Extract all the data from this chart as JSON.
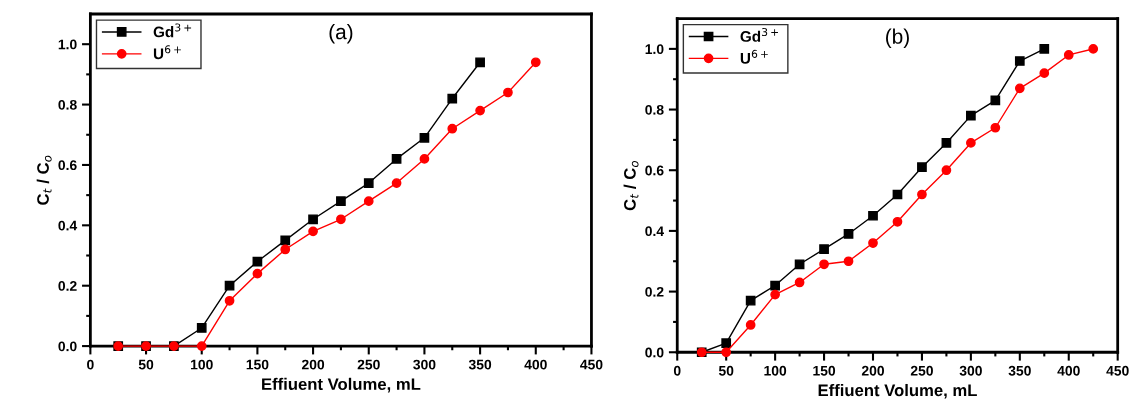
{
  "chart_data": [
    {
      "type": "line",
      "title": "(a)",
      "xlabel": "Effiuent Volume, mL",
      "ylabel": "C$_{t}$ / C$_{o}$",
      "legend": "top left",
      "grid": false,
      "xlim": [
        0,
        450
      ],
      "xticks": [
        0,
        {
          "value": 25,
          "label": null
        },
        50,
        {
          "value": 75,
          "label": null
        },
        100,
        {
          "value": 125,
          "label": null
        },
        150,
        {
          "value": 175,
          "label": null
        },
        200,
        {
          "value": 225,
          "label": null
        },
        250,
        {
          "value": 275,
          "label": null
        },
        300,
        {
          "value": 325,
          "label": null
        },
        350,
        {
          "value": 375,
          "label": null
        },
        400,
        {
          "value": 425,
          "label": null
        },
        450
      ],
      "ylim": [
        0,
        1.1
      ],
      "yticks": [
        "0.0",
        {
          "value": 0.1,
          "label": null
        },
        {
          "value": 0.2,
          "label": "0.2"
        },
        {
          "value": 0.3,
          "label": null
        },
        {
          "value": 0.4,
          "label": "0.4"
        },
        {
          "value": 0.5,
          "label": null
        },
        {
          "value": 0.6,
          "label": "0.6"
        },
        {
          "value": 0.7,
          "label": null
        },
        {
          "value": 0.8,
          "label": "0.8"
        },
        {
          "value": 0.9,
          "label": null
        },
        {
          "value": 1.0,
          "label": "1.0"
        }
      ],
      "series": [
        {
          "name": "Gd$^{3+}$",
          "color": "#000000",
          "marker": "square",
          "x": [
            25,
            50,
            75,
            100,
            125,
            150,
            175,
            200,
            225,
            250,
            275,
            300,
            325,
            350
          ],
          "values": [
            0,
            0,
            0,
            0.06,
            0.2,
            0.28,
            0.35,
            0.42,
            0.48,
            0.54,
            0.62,
            0.69,
            0.82,
            0.94
          ]
        },
        {
          "name": "U$^{6+}$",
          "color": "#ff0000",
          "marker": "circle",
          "x": [
            25,
            50,
            75,
            100,
            125,
            150,
            175,
            200,
            225,
            250,
            275,
            300,
            325,
            350,
            375,
            400
          ],
          "values": [
            0,
            0,
            0,
            0,
            0.15,
            0.24,
            0.32,
            0.38,
            0.42,
            0.48,
            0.54,
            0.62,
            0.72,
            0.78,
            0.84,
            0.94
          ]
        }
      ]
    },
    {
      "type": "line",
      "title": "(b)",
      "xlabel": "Effiuent Volume, mL",
      "ylabel": "C$_{t}$ / C$_{o}$",
      "legend": "top left",
      "grid": false,
      "xlim": [
        0,
        450
      ],
      "xticks": [
        0,
        {
          "value": 25,
          "label": null
        },
        50,
        {
          "value": 75,
          "label": null
        },
        100,
        {
          "value": 125,
          "label": null
        },
        150,
        {
          "value": 175,
          "label": null
        },
        200,
        {
          "value": 225,
          "label": null
        },
        250,
        {
          "value": 275,
          "label": null
        },
        300,
        {
          "value": 325,
          "label": null
        },
        350,
        {
          "value": 375,
          "label": null
        },
        400,
        {
          "value": 425,
          "label": null
        },
        450
      ],
      "ylim": [
        0,
        1.1
      ],
      "yticks": [
        {
          "value": 0.0,
          "label": "0.0"
        },
        {
          "value": 0.1,
          "label": null
        },
        {
          "value": 0.2,
          "label": "0.2"
        },
        {
          "value": 0.3,
          "label": null
        },
        {
          "value": 0.4,
          "label": "0.4"
        },
        {
          "value": 0.5,
          "label": null
        },
        {
          "value": 0.6,
          "label": "0.6"
        },
        {
          "value": 0.7,
          "label": null
        },
        {
          "value": 0.8,
          "label": "0.8"
        },
        {
          "value": 0.9,
          "label": null
        },
        {
          "value": 1.0,
          "label": "1.0"
        }
      ],
      "series": [
        {
          "name": "Gd$^{3+}$",
          "color": "#000000",
          "marker": "square",
          "x": [
            25,
            50,
            75,
            100,
            125,
            150,
            175,
            200,
            225,
            250,
            275,
            300,
            325,
            350,
            375
          ],
          "values": [
            0,
            0.03,
            0.17,
            0.22,
            0.29,
            0.34,
            0.39,
            0.45,
            0.52,
            0.61,
            0.69,
            0.78,
            0.83,
            0.96,
            1.0
          ]
        },
        {
          "name": "U$^{6+}$",
          "color": "#ff0000",
          "marker": "circle",
          "x": [
            25,
            50,
            75,
            100,
            125,
            150,
            175,
            200,
            225,
            250,
            275,
            300,
            325,
            350,
            375,
            400,
            425
          ],
          "values": [
            0,
            0,
            0.09,
            0.19,
            0.23,
            0.29,
            0.3,
            0.36,
            0.43,
            0.52,
            0.6,
            0.69,
            0.74,
            0.87,
            0.92,
            0.98,
            1.0
          ]
        }
      ]
    }
  ]
}
